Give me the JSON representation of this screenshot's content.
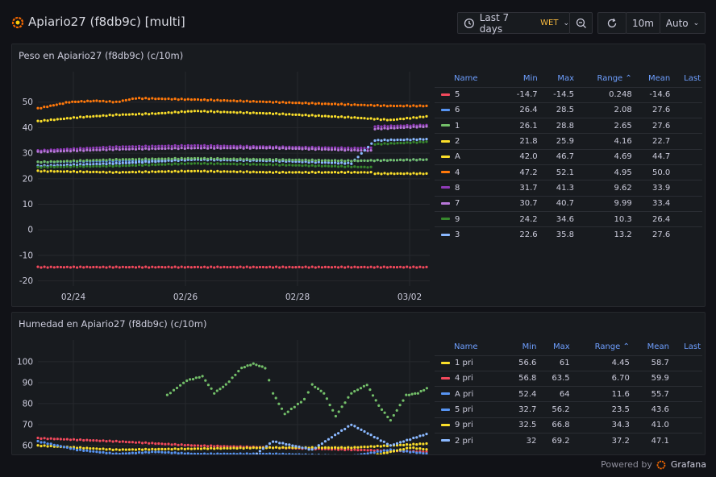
{
  "dashboard": {
    "title": "Apiario27 (f8db9c) [multi]",
    "time_range": "Last 7 days",
    "timezone": "WET",
    "refresh_interval": "10m",
    "refresh_mode": "Auto",
    "footer_prefix": "Powered by",
    "footer_brand": "Grafana"
  },
  "colors": {
    "background": "#111217",
    "panel": "#181b1f",
    "accent": "#6e9fff",
    "red": "#f2495c",
    "blue": "#5794f2",
    "green": "#73bf69",
    "yellow": "#fade2a",
    "orange": "#ff780a",
    "purple": "#b877d9",
    "light_blue": "#8ab8ff",
    "dark_green": "#37872d",
    "dark_purple": "#8f3bb8"
  },
  "panels": [
    {
      "title": "Peso en Apiario27 (f8db9c) (c/10m)",
      "legend_columns": [
        "Name",
        "Min",
        "Max",
        "Range ⌃",
        "Mean",
        "Last"
      ],
      "legend": [
        {
          "name": "5",
          "color": "#f2495c",
          "min": "-14.7",
          "max": "-14.5",
          "range": "0.248",
          "mean": "-14.6",
          "last": ""
        },
        {
          "name": "6",
          "color": "#5794f2",
          "min": "26.4",
          "max": "28.5",
          "range": "2.08",
          "mean": "27.6",
          "last": ""
        },
        {
          "name": "1",
          "color": "#73bf69",
          "min": "26.1",
          "max": "28.8",
          "range": "2.65",
          "mean": "27.6",
          "last": ""
        },
        {
          "name": "2",
          "color": "#fade2a",
          "min": "21.8",
          "max": "25.9",
          "range": "4.16",
          "mean": "22.7",
          "last": ""
        },
        {
          "name": "A",
          "color": "#fade2a",
          "min": "42.0",
          "max": "46.7",
          "range": "4.69",
          "mean": "44.7",
          "last": ""
        },
        {
          "name": "4",
          "color": "#ff780a",
          "min": "47.2",
          "max": "52.1",
          "range": "4.95",
          "mean": "50.0",
          "last": ""
        },
        {
          "name": "8",
          "color": "#8f3bb8",
          "min": "31.7",
          "max": "41.3",
          "range": "9.62",
          "mean": "33.9",
          "last": ""
        },
        {
          "name": "7",
          "color": "#b877d9",
          "min": "30.7",
          "max": "40.7",
          "range": "9.99",
          "mean": "33.4",
          "last": ""
        },
        {
          "name": "9",
          "color": "#37872d",
          "min": "24.2",
          "max": "34.6",
          "range": "10.3",
          "mean": "26.4",
          "last": ""
        },
        {
          "name": "3",
          "color": "#8ab8ff",
          "min": "22.6",
          "max": "35.8",
          "range": "13.2",
          "mean": "27.6",
          "last": ""
        }
      ]
    },
    {
      "title": "Humedad en Apiario27 (f8db9c) (c/10m)",
      "legend_columns": [
        "Name",
        "Min",
        "Max",
        "Range ⌃",
        "Mean",
        "Last"
      ],
      "legend": [
        {
          "name": "1 pri",
          "color": "#fade2a",
          "min": "56.6",
          "max": "61",
          "range": "4.45",
          "mean": "58.7",
          "last": ""
        },
        {
          "name": "4 pri",
          "color": "#f2495c",
          "min": "56.8",
          "max": "63.5",
          "range": "6.70",
          "mean": "59.9",
          "last": ""
        },
        {
          "name": "A pri",
          "color": "#5794f2",
          "min": "52.4",
          "max": "64",
          "range": "11.6",
          "mean": "55.7",
          "last": ""
        },
        {
          "name": "5 pri",
          "color": "#5794f2",
          "min": "32.7",
          "max": "56.2",
          "range": "23.5",
          "mean": "43.6",
          "last": ""
        },
        {
          "name": "9 pri",
          "color": "#fade2a",
          "min": "32.5",
          "max": "66.8",
          "range": "34.3",
          "mean": "41.0",
          "last": ""
        },
        {
          "name": "2 pri",
          "color": "#8ab8ff",
          "min": "32",
          "max": "69.2",
          "range": "37.2",
          "mean": "47.1",
          "last": ""
        }
      ]
    }
  ],
  "chart_data": [
    {
      "type": "scatter",
      "title": "Peso en Apiario27 (f8db9c) (c/10m)",
      "x_ticks": [
        "02/24",
        "02/26",
        "02/28",
        "03/02"
      ],
      "ylim": [
        -22,
        60
      ],
      "y_ticks": [
        -20,
        -10,
        0,
        10,
        20,
        30,
        40,
        50
      ],
      "grid": true,
      "legend_position": "right",
      "series": [
        {
          "name": "5",
          "color": "#f2495c",
          "points": [
            [
              0,
              -14.6
            ],
            [
              0.25,
              -14.6
            ],
            [
              0.5,
              -14.6
            ],
            [
              0.75,
              -14.6
            ],
            [
              0.9,
              -14.6
            ],
            [
              1,
              -14.6
            ]
          ]
        },
        {
          "name": "4",
          "color": "#ff780a",
          "points": [
            [
              0,
              47.5
            ],
            [
              0.08,
              50
            ],
            [
              0.15,
              50.5
            ],
            [
              0.2,
              50
            ],
            [
              0.25,
              51.5
            ],
            [
              0.4,
              51
            ],
            [
              0.6,
              50
            ],
            [
              0.8,
              49
            ],
            [
              0.9,
              48.5
            ],
            [
              1,
              48.5
            ]
          ]
        },
        {
          "name": "A",
          "color": "#fade2a",
          "points": [
            [
              0,
              42.5
            ],
            [
              0.1,
              44
            ],
            [
              0.2,
              45
            ],
            [
              0.3,
              45.5
            ],
            [
              0.4,
              46.5
            ],
            [
              0.6,
              45.5
            ],
            [
              0.8,
              44
            ],
            [
              0.9,
              43
            ],
            [
              1,
              44.5
            ]
          ]
        },
        {
          "name": "8",
          "color": "#8f3bb8",
          "points": [
            [
              0,
              31
            ],
            [
              0.2,
              32.5
            ],
            [
              0.4,
              33
            ],
            [
              0.6,
              32.5
            ],
            [
              0.8,
              32
            ],
            [
              0.85,
              32
            ],
            [
              0.86,
              40.5
            ],
            [
              1,
              41
            ]
          ]
        },
        {
          "name": "7",
          "color": "#b877d9",
          "points": [
            [
              0,
              30.5
            ],
            [
              0.2,
              31.5
            ],
            [
              0.4,
              32
            ],
            [
              0.6,
              32
            ],
            [
              0.85,
              31
            ],
            [
              0.86,
              39.5
            ],
            [
              1,
              40.5
            ]
          ]
        },
        {
          "name": "6",
          "color": "#5794f2",
          "points": [
            [
              0,
              26.5
            ],
            [
              0.2,
              27
            ],
            [
              0.4,
              27.5
            ],
            [
              0.6,
              27.5
            ],
            [
              0.8,
              27
            ],
            [
              1,
              27.5
            ]
          ]
        },
        {
          "name": "3",
          "color": "#8ab8ff",
          "points": [
            [
              0,
              25
            ],
            [
              0.2,
              26
            ],
            [
              0.4,
              27.5
            ],
            [
              0.6,
              27
            ],
            [
              0.8,
              26
            ],
            [
              0.86,
              35
            ],
            [
              1,
              35.5
            ]
          ]
        },
        {
          "name": "1",
          "color": "#73bf69",
          "points": [
            [
              0,
              26.5
            ],
            [
              0.2,
              27.5
            ],
            [
              0.4,
              28
            ],
            [
              0.6,
              27.5
            ],
            [
              0.8,
              27
            ],
            [
              1,
              27.5
            ]
          ]
        },
        {
          "name": "9",
          "color": "#37872d",
          "points": [
            [
              0,
              24.5
            ],
            [
              0.2,
              25
            ],
            [
              0.4,
              26
            ],
            [
              0.6,
              25.5
            ],
            [
              0.85,
              24.5
            ],
            [
              0.86,
              33.5
            ],
            [
              1,
              34.5
            ]
          ]
        },
        {
          "name": "2",
          "color": "#fade2a",
          "points": [
            [
              0,
              23
            ],
            [
              0.2,
              22.5
            ],
            [
              0.4,
              23
            ],
            [
              0.6,
              22.5
            ],
            [
              0.85,
              22.5
            ],
            [
              0.86,
              22
            ],
            [
              1,
              22
            ]
          ]
        }
      ]
    },
    {
      "type": "scatter",
      "title": "Humedad en Apiario27 (f8db9c) (c/10m)",
      "ylim": [
        55,
        108
      ],
      "y_ticks": [
        60,
        70,
        80,
        90,
        100
      ],
      "grid": true,
      "legend_position": "right",
      "series": [
        {
          "name": "4 pri",
          "color": "#f2495c",
          "points": [
            [
              0,
              63.5
            ],
            [
              0.2,
              62
            ],
            [
              0.4,
              60
            ],
            [
              0.6,
              59
            ],
            [
              0.8,
              58
            ],
            [
              1,
              57
            ]
          ]
        },
        {
          "name": "1 pri",
          "color": "#fade2a",
          "points": [
            [
              0,
              60
            ],
            [
              0.2,
              58
            ],
            [
              0.4,
              58.5
            ],
            [
              0.6,
              59
            ],
            [
              0.8,
              59
            ],
            [
              1,
              61
            ]
          ]
        },
        {
          "name": "A pri",
          "color": "#5794f2",
          "points": [
            [
              0,
              62
            ],
            [
              0.1,
              58
            ],
            [
              0.2,
              56
            ],
            [
              0.3,
              57
            ],
            [
              0.4,
              56
            ],
            [
              0.6,
              56
            ],
            [
              0.8,
              55
            ],
            [
              1,
              55
            ]
          ]
        },
        {
          "name": "5 pri",
          "color": "#5794f2",
          "points": [
            [
              0.8,
              55
            ],
            [
              0.9,
              58
            ],
            [
              1,
              56
            ]
          ]
        },
        {
          "name": "9 pri",
          "color": "#fade2a",
          "points": [
            [
              0.85,
              55
            ],
            [
              0.95,
              59
            ],
            [
              1,
              58
            ]
          ]
        },
        {
          "name": "2 pri",
          "color": "#8ab8ff",
          "points": [
            [
              0.55,
              55
            ],
            [
              0.6,
              62
            ],
            [
              0.7,
              58
            ],
            [
              0.8,
              70
            ],
            [
              0.9,
              60
            ],
            [
              1,
              66
            ]
          ]
        },
        {
          "name": "",
          "color": "#73bf69",
          "points": [
            [
              0.33,
              84
            ],
            [
              0.38,
              91
            ],
            [
              0.42,
              93
            ],
            [
              0.45,
              85
            ],
            [
              0.48,
              89
            ],
            [
              0.52,
              97
            ],
            [
              0.55,
              99
            ],
            [
              0.58,
              97
            ],
            [
              0.6,
              85
            ],
            [
              0.63,
              75
            ],
            [
              0.68,
              82
            ],
            [
              0.7,
              89
            ],
            [
              0.73,
              85
            ],
            [
              0.76,
              74
            ],
            [
              0.8,
              85
            ],
            [
              0.84,
              89
            ],
            [
              0.87,
              79
            ],
            [
              0.9,
              72
            ],
            [
              0.94,
              84
            ],
            [
              0.97,
              85
            ],
            [
              1,
              88
            ]
          ]
        }
      ]
    }
  ]
}
